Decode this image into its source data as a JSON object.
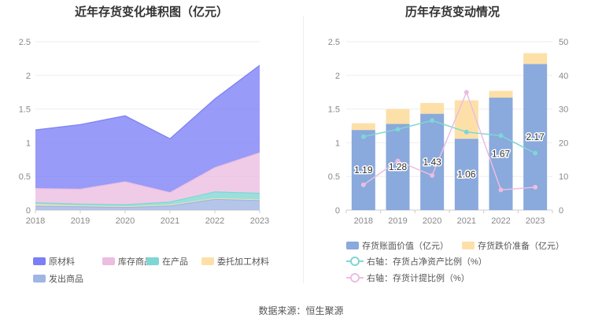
{
  "source": "数据来源：恒生聚源",
  "chart_data": [
    {
      "type": "area",
      "title": "近年存货变化堆积图（亿元）",
      "x": [
        "2018",
        "2019",
        "2020",
        "2021",
        "2022",
        "2023"
      ],
      "ylim": [
        0,
        2.5
      ],
      "yticks": [
        "0",
        "0.5",
        "1",
        "1.5",
        "2",
        "2.5"
      ],
      "stacked": true,
      "grid": true,
      "legend_position": "bottom",
      "series": [
        {
          "name": "原材料",
          "color": "#7b7ff5",
          "values": [
            0.87,
            0.96,
            0.98,
            0.8,
            1.02,
            1.3
          ]
        },
        {
          "name": "库存商品",
          "color": "#ecbde0",
          "values": [
            0.21,
            0.22,
            0.34,
            0.14,
            0.36,
            0.6
          ]
        },
        {
          "name": "在产品",
          "color": "#7fd6d4",
          "values": [
            0.03,
            0.03,
            0.03,
            0.05,
            0.1,
            0.1
          ]
        },
        {
          "name": "委托加工材料",
          "color": "#fde0a8",
          "values": [
            0.02,
            0.01,
            0.01,
            0.01,
            0.01,
            0.01
          ]
        },
        {
          "name": "发出商品",
          "color": "#9fb5e3",
          "values": [
            0.06,
            0.05,
            0.04,
            0.06,
            0.16,
            0.14
          ]
        }
      ]
    },
    {
      "type": "bar",
      "title": "历年存货变动情况",
      "x": [
        "2018",
        "2019",
        "2020",
        "2021",
        "2022",
        "2023"
      ],
      "ylim": [
        0,
        2.5
      ],
      "yticks": [
        "0",
        "0.5",
        "1",
        "1.5",
        "2",
        "2.5"
      ],
      "y2lim": [
        0,
        50
      ],
      "y2ticks": [
        "0",
        "10",
        "20",
        "30",
        "40",
        "50"
      ],
      "stacked": true,
      "grid": true,
      "legend_position": "bottom",
      "series": [
        {
          "name": "存货账面价值（亿元）",
          "type": "bar",
          "axis": "left",
          "color": "#8aa9dc",
          "values": [
            1.19,
            1.28,
            1.43,
            1.06,
            1.67,
            2.17
          ],
          "labels": [
            "1.19",
            "1.28",
            "1.43",
            "1.06",
            "1.67",
            "2.17"
          ]
        },
        {
          "name": "存货跌价准备（亿元）",
          "type": "bar",
          "axis": "left",
          "color": "#fde0a8",
          "values": [
            0.1,
            0.22,
            0.16,
            0.57,
            0.1,
            0.16
          ]
        },
        {
          "name": "右轴：存货占净资产比例（%）",
          "type": "line",
          "axis": "right",
          "color": "#7fd6d4",
          "values": [
            21.8,
            24.0,
            26.6,
            23.2,
            22.1,
            16.9
          ]
        },
        {
          "name": "右轴：存货计提比例（%）",
          "type": "line",
          "axis": "right",
          "color": "#ecbde0",
          "values": [
            7.5,
            14.6,
            10.3,
            35.0,
            6.0,
            6.8
          ]
        }
      ]
    }
  ]
}
